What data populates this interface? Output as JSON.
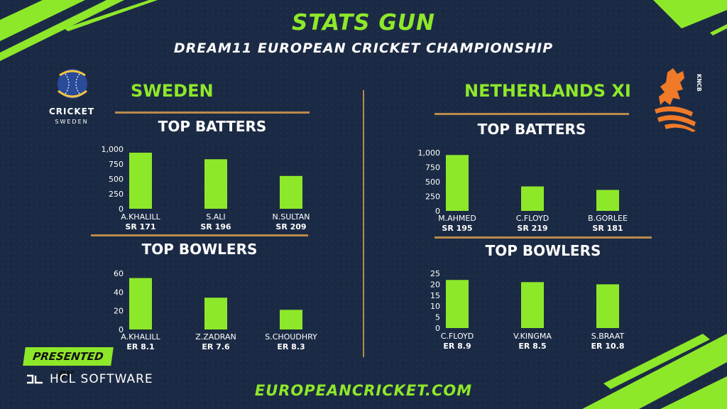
{
  "header": {
    "title": "STATS GUN",
    "subtitle": "DREAM11 EUROPEAN CRICKET CHAMPIONSHIP"
  },
  "left_team": {
    "name": "SWEDEN",
    "logo_text_1": "CRICKET",
    "logo_text_2": "SWEDEN"
  },
  "right_team": {
    "name": "NETHERLANDS XI",
    "logo_text": "KNCB"
  },
  "sections": {
    "batters_label": "TOP BATTERS",
    "bowlers_label": "TOP BOWLERS"
  },
  "footer": {
    "presented_by": "PRESENTED BY",
    "sponsor": "HCL SOFTWARE",
    "website": "EUROPEANCRICKET.COM"
  },
  "colors": {
    "background": "#1b2a44",
    "accent_green": "#8ee82a",
    "rule_brown": "#b98a4a",
    "text": "#ffffff"
  },
  "chart_data": [
    {
      "id": "sweden_batters",
      "type": "bar",
      "title": "TOP BATTERS",
      "categories": [
        "A.KHALILL",
        "S.ALI",
        "N.SULTAN"
      ],
      "sublabels": [
        "SR 171",
        "SR 196",
        "SR 209"
      ],
      "values": [
        940,
        830,
        550
      ],
      "ylim": [
        0,
        1000
      ],
      "yticks": [
        0,
        250,
        500,
        750,
        1000
      ],
      "ytick_labels": [
        "0",
        "250",
        "500",
        "750",
        "1,000"
      ],
      "xlabel": "",
      "ylabel": "",
      "grid": false,
      "color": "#8ee82a"
    },
    {
      "id": "sweden_bowlers",
      "type": "bar",
      "title": "TOP BOWLERS",
      "categories": [
        "A.KHALILL",
        "Z.ZADRAN",
        "S.CHOUDHRY"
      ],
      "sublabels": [
        "ER 8.1",
        "ER 7.6",
        "ER 8.3"
      ],
      "values": [
        55,
        34,
        21
      ],
      "ylim": [
        0,
        60
      ],
      "yticks": [
        0,
        20,
        40,
        60
      ],
      "ytick_labels": [
        "0",
        "20",
        "40",
        "60"
      ],
      "xlabel": "",
      "ylabel": "",
      "grid": false,
      "color": "#8ee82a"
    },
    {
      "id": "netherlands_batters",
      "type": "bar",
      "title": "TOP BATTERS",
      "categories": [
        "M.AHMED",
        "C.FLOYD",
        "B.GORLEE"
      ],
      "sublabels": [
        "SR 195",
        "SR 219",
        "SR 181"
      ],
      "values": [
        960,
        420,
        360
      ],
      "ylim": [
        0,
        1000
      ],
      "yticks": [
        0,
        250,
        500,
        750,
        1000
      ],
      "ytick_labels": [
        "0",
        "250",
        "500",
        "750",
        "1,000"
      ],
      "xlabel": "",
      "ylabel": "",
      "grid": false,
      "color": "#8ee82a"
    },
    {
      "id": "netherlands_bowlers",
      "type": "bar",
      "title": "TOP BOWLERS",
      "categories": [
        "C.FLOYD",
        "V.KINGMA",
        "S.BRAAT"
      ],
      "sublabels": [
        "ER 8.9",
        "ER 8.5",
        "ER 10.8"
      ],
      "values": [
        22,
        21,
        20
      ],
      "ylim": [
        0,
        25
      ],
      "yticks": [
        0,
        5,
        10,
        15,
        20,
        25
      ],
      "ytick_labels": [
        "0",
        "5",
        "10",
        "15",
        "20",
        "25"
      ],
      "xlabel": "",
      "ylabel": "",
      "grid": false,
      "color": "#8ee82a"
    }
  ]
}
